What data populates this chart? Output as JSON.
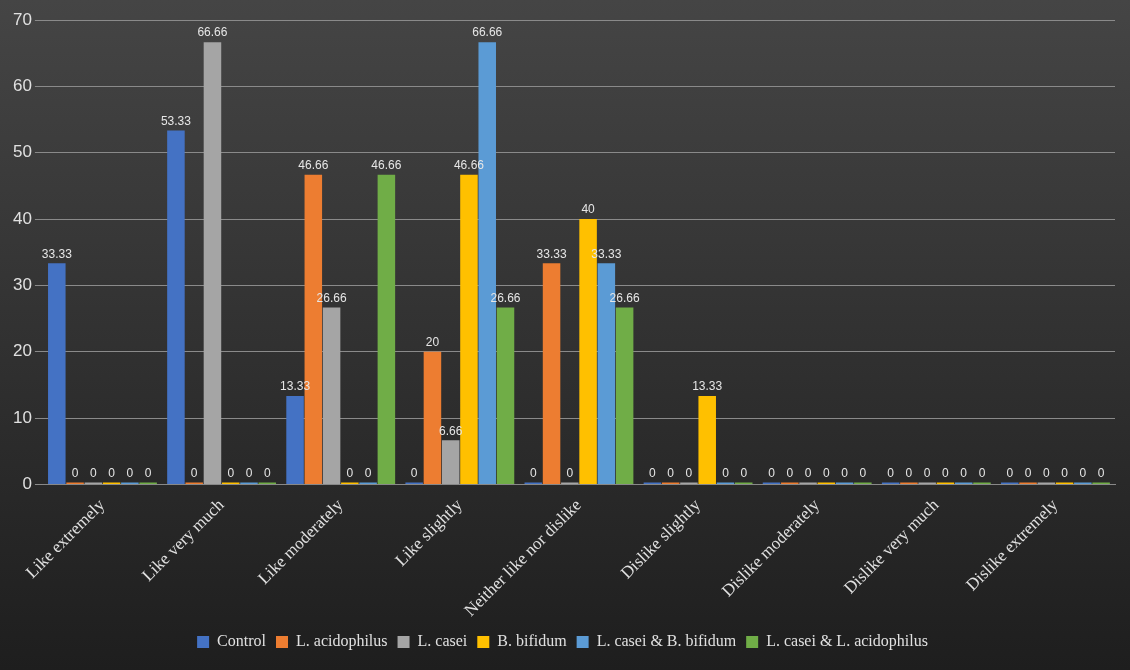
{
  "chart_data": {
    "type": "bar",
    "categories": [
      "Like extremely",
      "Like very much",
      "Like moderately",
      "Like slightly",
      "Neither like nor dislike",
      "Dislike slightly",
      "Dislike moderately",
      "Dislike very much",
      "Dislike extremely"
    ],
    "series": [
      {
        "name": "Control",
        "color": "#4472c4",
        "values": [
          33.33,
          53.33,
          13.33,
          0,
          0,
          0,
          0,
          0,
          0
        ]
      },
      {
        "name": "L. acidophilus",
        "color": "#ed7d31",
        "values": [
          0,
          0,
          46.66,
          20,
          33.33,
          0,
          0,
          0,
          0
        ]
      },
      {
        "name": "L. casei",
        "color": "#a5a5a5",
        "values": [
          0,
          66.66,
          26.66,
          6.66,
          0,
          0,
          0,
          0,
          0
        ]
      },
      {
        "name": "B. bifidum",
        "color": "#ffc000",
        "values": [
          0,
          0,
          0,
          46.66,
          40,
          13.33,
          0,
          0,
          0
        ]
      },
      {
        "name": "L. casei & B. bifidum",
        "color": "#5b9bd5",
        "values": [
          0,
          0,
          0,
          66.66,
          33.33,
          0,
          0,
          0,
          0
        ]
      },
      {
        "name": "L. casei & L. acidophilus",
        "color": "#70ad47",
        "values": [
          0,
          0,
          46.66,
          26.66,
          26.66,
          0,
          0,
          0,
          0
        ]
      }
    ],
    "ylim": [
      0,
      70
    ],
    "yticks": [
      0,
      10,
      20,
      30,
      40,
      50,
      60,
      70
    ],
    "grid": "y",
    "legend": "bottom",
    "data_labels": true
  }
}
